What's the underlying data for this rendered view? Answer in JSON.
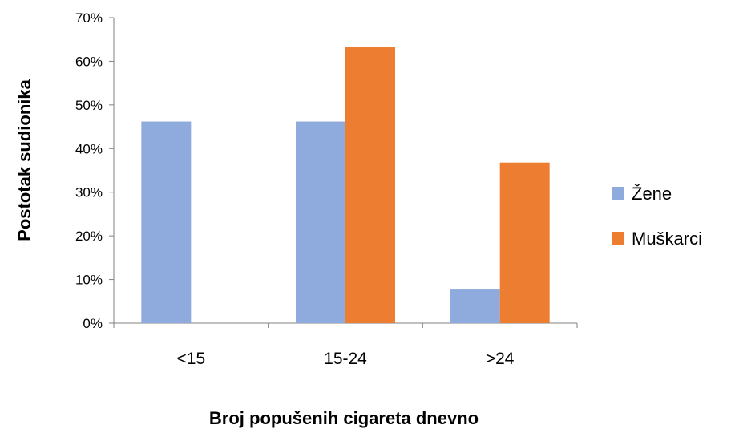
{
  "chart_data": {
    "type": "bar",
    "title": "",
    "xlabel": "Broj popušenih cigareta dnevno",
    "ylabel": "Postotak sudionika",
    "categories": [
      "<15",
      "15-24",
      ">24"
    ],
    "series": [
      {
        "name": "Žene",
        "color": "#8FAADC",
        "values": [
          46.2,
          46.2,
          7.7
        ]
      },
      {
        "name": "Muškarci",
        "color": "#ED7D31",
        "values": [
          0,
          63.2,
          36.8
        ]
      }
    ],
    "ylim": [
      0,
      70
    ],
    "yticks": [
      "0%",
      "10%",
      "20%",
      "30%",
      "40%",
      "50%",
      "60%",
      "70%"
    ],
    "grid": false,
    "legend_position": "right"
  }
}
